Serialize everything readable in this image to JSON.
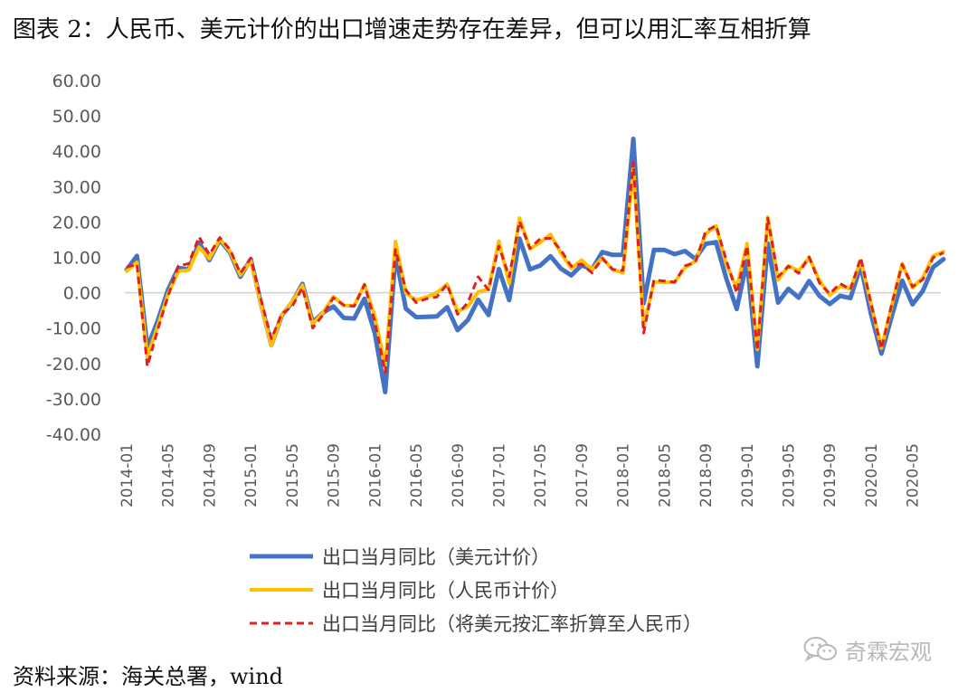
{
  "title": "图表 2：人民币、美元计价的出口增速走势存在差异，但可以用汇率互相折算",
  "source": "资料来源：海关总署，wind",
  "watermark": "奇霖宏观",
  "watermark_icon": "wechat-icon",
  "chart_data": {
    "type": "line",
    "yticks": [
      "60.00",
      "50.00",
      "40.00",
      "30.00",
      "20.00",
      "10.00",
      "0.00",
      "-10.00",
      "-20.00",
      "-30.00",
      "-40.00"
    ],
    "ylim": [
      -40,
      60
    ],
    "x": [
      "2014-01",
      "2014-02",
      "2014-03",
      "2014-04",
      "2014-05",
      "2014-06",
      "2014-07",
      "2014-08",
      "2014-09",
      "2014-10",
      "2014-11",
      "2014-12",
      "2015-01",
      "2015-02",
      "2015-03",
      "2015-04",
      "2015-05",
      "2015-06",
      "2015-07",
      "2015-08",
      "2015-09",
      "2015-10",
      "2015-11",
      "2015-12",
      "2016-01",
      "2016-02",
      "2016-03",
      "2016-04",
      "2016-05",
      "2016-06",
      "2016-07",
      "2016-08",
      "2016-09",
      "2016-10",
      "2016-11",
      "2016-12",
      "2017-01",
      "2017-02",
      "2017-03",
      "2017-04",
      "2017-05",
      "2017-06",
      "2017-07",
      "2017-08",
      "2017-09",
      "2017-10",
      "2017-11",
      "2017-12",
      "2018-01",
      "2018-02",
      "2018-03",
      "2018-04",
      "2018-05",
      "2018-06",
      "2018-07",
      "2018-08",
      "2018-09",
      "2018-10",
      "2018-11",
      "2018-12",
      "2019-01",
      "2019-02",
      "2019-03",
      "2019-04",
      "2019-05",
      "2019-06",
      "2019-07",
      "2019-08",
      "2019-09",
      "2019-10",
      "2019-11",
      "2019-12",
      "2020-01",
      "2020-02",
      "2020-03",
      "2020-04",
      "2020-05",
      "2020-06",
      "2020-07",
      "2020-08"
    ],
    "xtick_labels": [
      "2014-01",
      "2014-05",
      "2014-09",
      "2015-01",
      "2015-05",
      "2015-09",
      "2016-01",
      "2016-05",
      "2016-09",
      "2017-01",
      "2017-05",
      "2017-09",
      "2018-01",
      "2018-05",
      "2018-09",
      "2019-01",
      "2019-05",
      "2019-09",
      "2020-01",
      "2020-05"
    ],
    "grid": false,
    "legend_position": "bottom",
    "series": [
      {
        "name": "出口当月同比（美元计价）",
        "color": "#4472C4",
        "style": "solid",
        "values": [
          6.5,
          10.4,
          -15.5,
          -8,
          0.8,
          7,
          6.6,
          14.2,
          9.2,
          14.9,
          11.4,
          4.5,
          9.5,
          -3.2,
          -14.8,
          -6.5,
          -2.7,
          2.5,
          -8.4,
          -5.6,
          -3.9,
          -7.1,
          -7.3,
          -1.7,
          -11.4,
          -28.1,
          10.8,
          -4.5,
          -6.9,
          -6.8,
          -6.7,
          -4.1,
          -10.6,
          -7.7,
          -2,
          -6.3,
          6.7,
          -2.1,
          15.3,
          6.6,
          7.7,
          10.3,
          6.8,
          4.9,
          7.8,
          6.6,
          11.5,
          10.7,
          10.7,
          43.5,
          -3,
          12.1,
          12.1,
          10.9,
          11.8,
          9.6,
          13.8,
          14.3,
          4,
          -4.6,
          9,
          -20.8,
          13.9,
          -2.8,
          1.1,
          -1.4,
          3.3,
          -0.9,
          -3.2,
          -0.9,
          -1.5,
          7.6,
          -6.2,
          -17.2,
          -6.6,
          3.4,
          -3.3,
          0.5,
          7.2,
          9.5
        ]
      },
      {
        "name": "出口当月同比（人民币计价）",
        "color": "#FFC000",
        "style": "solid",
        "values": [
          6.1,
          8.6,
          -18.1,
          -9.5,
          -0.4,
          6.1,
          6.4,
          12.9,
          9.6,
          15.2,
          11.7,
          5,
          9,
          -3.5,
          -15,
          -6.4,
          -2.5,
          2.1,
          -8.9,
          -5.5,
          -1.1,
          -3.6,
          -3.7,
          2.3,
          -6.6,
          -20.6,
          14.5,
          -0.1,
          -2.1,
          -1.2,
          0,
          2.4,
          -5.3,
          -3.9,
          0.2,
          1,
          14.6,
          2.6,
          21.1,
          12.4,
          14.2,
          16.5,
          11.2,
          6.9,
          9.2,
          6.6,
          9.9,
          6.5,
          5.6,
          35,
          -9.5,
          3,
          2.9,
          3,
          7.1,
          8.9,
          16.6,
          18.9,
          8,
          1.3,
          13.9,
          -16,
          21.3,
          3.6,
          7.6,
          6.2,
          10,
          3.5,
          -0.7,
          1.9,
          1.1,
          9.1,
          -3.3,
          -15.6,
          -3.5,
          8.2,
          1.4,
          4.3,
          10.4,
          11.6
        ]
      },
      {
        "name": "出口当月同比（将美元按汇率折算至人民币）",
        "color": "#E02020",
        "style": "dashed",
        "values": [
          7.2,
          8.1,
          -20.8,
          -10.5,
          -1,
          7.6,
          8.2,
          15.8,
          10.8,
          15.6,
          12.2,
          5.5,
          9.8,
          -2,
          -13,
          -6,
          -3.9,
          1.4,
          -10,
          -6.2,
          -1.4,
          -3.5,
          -3.8,
          2.3,
          -8.1,
          -22.5,
          12.2,
          0.8,
          -2.8,
          -1.7,
          -1.2,
          2.4,
          -6.1,
          -2.8,
          4.5,
          0.8,
          13.2,
          4.5,
          20.2,
          12.5,
          15.3,
          15.4,
          12,
          7.5,
          8.1,
          5.6,
          9.7,
          6.6,
          6.3,
          36.9,
          -11.4,
          3.6,
          3.3,
          3,
          7.6,
          8.6,
          17.4,
          19,
          9.2,
          -0.1,
          13.2,
          -16.3,
          21.1,
          4.5,
          7.5,
          5.5,
          10.1,
          2.8,
          -0.3,
          2.6,
          0.9,
          9.9,
          -3.1,
          -15.9,
          -3.2,
          8,
          1.7,
          3.7,
          9.9,
          11.3
        ]
      }
    ]
  }
}
